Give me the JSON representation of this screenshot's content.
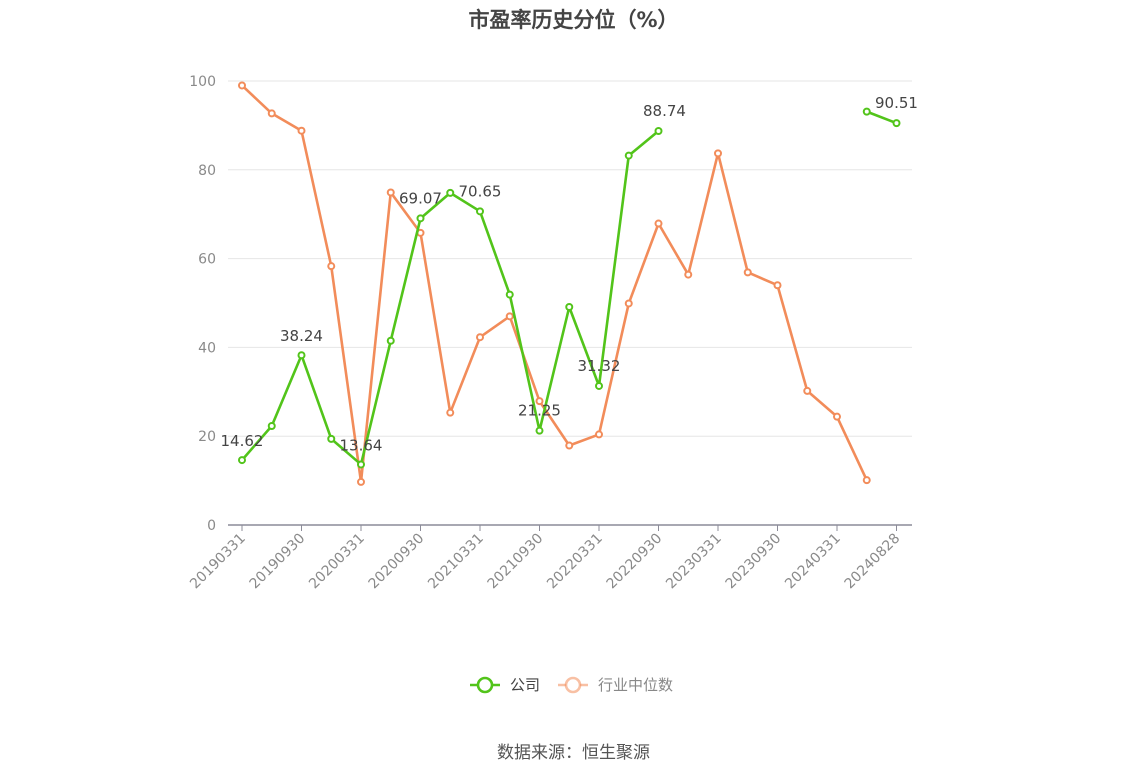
{
  "chart_data": {
    "type": "line",
    "title": "市盈率历史分位（%）",
    "source": "数据来源：恒生聚源",
    "ylim": [
      0,
      100
    ],
    "yticks": [
      0,
      20,
      40,
      60,
      80,
      100
    ],
    "x_tick_labels": [
      "20190331",
      "20190930",
      "20200331",
      "20200930",
      "20210331",
      "20210930",
      "20220331",
      "20220930",
      "20230331",
      "20230930",
      "20240331",
      "20240828"
    ],
    "x": [
      "20190331",
      "20190630",
      "20190930",
      "20191231",
      "20200331",
      "20200630",
      "20200930",
      "20201231",
      "20210331",
      "20210630",
      "20210930",
      "20211231",
      "20220331",
      "20220630",
      "20220930",
      "20221231",
      "20230331",
      "20230630",
      "20230930",
      "20231231",
      "20240331",
      "20240630",
      "20240828"
    ],
    "grid": true,
    "legend_position": "bottom",
    "series": [
      {
        "name": "公司",
        "color": "#52c41a",
        "values": [
          14.62,
          22.3,
          38.24,
          19.4,
          13.64,
          41.5,
          69.07,
          74.8,
          70.65,
          51.9,
          21.25,
          49.1,
          31.32,
          83.2,
          88.74,
          null,
          null,
          null,
          null,
          null,
          null,
          93.1,
          90.51
        ],
        "labels": {
          "0": "14.62",
          "2": "38.24",
          "4": "13.64",
          "6": "69.07",
          "8": "70.65",
          "10": "21.25",
          "12": "31.32",
          "14": "88.74",
          "22": "90.51"
        }
      },
      {
        "name": "行业中位数",
        "color": "#f28c5a",
        "values": [
          99.0,
          92.7,
          88.8,
          58.3,
          9.7,
          74.9,
          65.8,
          25.3,
          42.3,
          47.0,
          27.9,
          17.9,
          20.4,
          49.9,
          67.9,
          56.4,
          83.7,
          56.9,
          54.0,
          30.2,
          24.4,
          10.1,
          null
        ]
      }
    ]
  }
}
